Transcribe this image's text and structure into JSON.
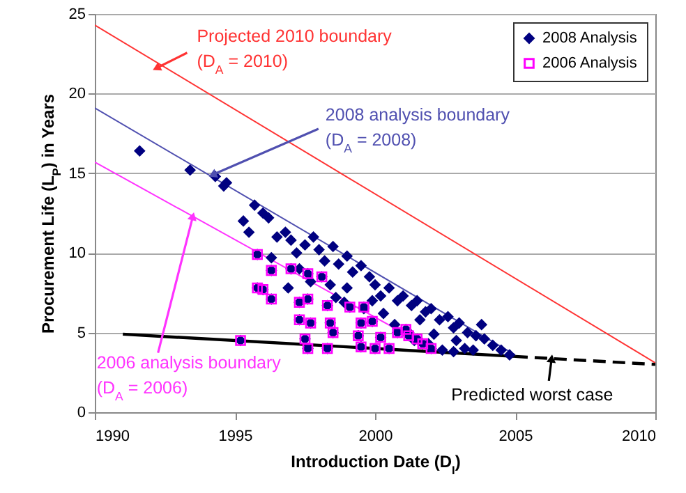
{
  "chart_data": {
    "type": "scatter",
    "xlabel": "Introduction Date (D$_{I}$)",
    "ylabel": "Procurement Life (L$_{P}$) in Years",
    "xlim": [
      1990,
      2010
    ],
    "ylim": [
      0,
      25
    ],
    "xticks": [
      1990,
      1995,
      2000,
      2005,
      2010
    ],
    "yticks": [
      0,
      5,
      10,
      15,
      20,
      25
    ],
    "grid": "y",
    "legend": "top right",
    "series": [
      {
        "type": "line",
        "color": "#ff3333",
        "x": [
          1990,
          2010
        ],
        "values": [
          24.3,
          3.1
        ]
      },
      {
        "type": "line",
        "color": "#5050b0",
        "x": [
          1990,
          2005
        ],
        "values": [
          19.1,
          3.6
        ]
      },
      {
        "type": "line",
        "color": "#ff33ff",
        "x": [
          1990,
          2001.5
        ],
        "values": [
          15.7,
          4.5
        ]
      },
      {
        "type": "line",
        "color": "#000000",
        "x": [
          1991,
          2005
        ],
        "values": [
          4.9,
          3.5
        ]
      },
      {
        "type": "line",
        "color": "#000000",
        "line_style": "dashed",
        "x": [
          2005,
          2010
        ],
        "values": [
          3.5,
          3.0
        ]
      },
      {
        "name": "2008 Analysis",
        "marker": "diamond",
        "color": "#000080",
        "x": [
          1991.6,
          1993.4,
          1994.3,
          1994.6,
          1994.7,
          1995.7,
          1995.3,
          1995.5,
          1996,
          1996.2,
          1996.5,
          1996.3,
          1996.8,
          1997,
          1997.2,
          1997.5,
          1997.8,
          1997.3,
          1998,
          1998.2,
          1998.5,
          1998.7,
          1999,
          1999.2,
          1999.5,
          1999.8,
          1997.7,
          1998.4,
          1999,
          2000,
          2000.2,
          2000.5,
          2000.8,
          2001,
          2001.3,
          2001.5,
          2001.8,
          2002,
          2002.3,
          2002.6,
          2002.8,
          2003,
          2003.3,
          2003.6,
          2003.9,
          2004.2,
          2004.5,
          2004.8,
          2003.2,
          2002.4,
          2002.8,
          2001.9,
          2002.1,
          2003.5,
          2000.3,
          2000.7,
          2001.2,
          1999.6,
          1998.9,
          2001.6,
          2003.8,
          2002.9,
          2001.4,
          1996.9,
          1998.6,
          1999.9,
          1995.2,
          1995.8,
          1996.3,
          1997,
          1997.6,
          1998.1,
          1995.8,
          1996,
          1996.3,
          1997.3,
          1997.6,
          1997.3,
          1997.7,
          1998.4,
          1998.3,
          1999.1,
          1999.6,
          1999.5,
          1999.9,
          1998.5,
          1999.4,
          1997.5,
          1997.6,
          1998.3,
          1999.5,
          2000,
          2000.5,
          2000.2,
          2000.8,
          2001.1,
          2001.5,
          2001.7,
          2001.2,
          2002
        ],
        "values": [
          16.4,
          15.2,
          14.8,
          14.2,
          14.4,
          13,
          12,
          11.3,
          12.5,
          12.2,
          11,
          9.7,
          11.3,
          10.8,
          10,
          10.5,
          11,
          9,
          10.2,
          9.5,
          10.4,
          9.3,
          9.8,
          8.8,
          9.2,
          8.5,
          8.2,
          8,
          7.8,
          8,
          7.3,
          7.8,
          7,
          7.3,
          6.7,
          7,
          6.3,
          6.5,
          5.8,
          6,
          5.3,
          5.6,
          5,
          4.8,
          4.6,
          4.2,
          3.9,
          3.6,
          4,
          3.9,
          3.8,
          4.3,
          4.9,
          3.9,
          6.2,
          5.5,
          5,
          6.5,
          6.9,
          5.8,
          5.5,
          4.5,
          4.5,
          7.8,
          7.2,
          7,
          4.5,
          9.9,
          8.9,
          9,
          8.7,
          8.5,
          7.8,
          7.7,
          7.1,
          6.9,
          7.1,
          5.8,
          5.6,
          5.6,
          6.7,
          6.6,
          6.6,
          5.6,
          5.7,
          5,
          4.8,
          4.6,
          4,
          4,
          4.1,
          4,
          4,
          4.7,
          5,
          5.2,
          4.6,
          4.3,
          4.8,
          4
        ]
      },
      {
        "name": "2006 Analysis",
        "marker": "square",
        "color": "#ff00ff",
        "x": [
          1995.2,
          1995.8,
          1996.3,
          1997,
          1997.6,
          1998.1,
          1995.8,
          1996,
          1996.3,
          1997.3,
          1997.6,
          1997.3,
          1997.7,
          1998.4,
          1998.3,
          1999.1,
          1999.6,
          1999.5,
          1999.9,
          1998.5,
          1999.4,
          1997.5,
          1997.6,
          1998.3,
          1999.5,
          2000,
          2000.5,
          2000.2,
          2000.8,
          2001.1,
          2001.5,
          2001.7,
          2001.2,
          2002
        ],
        "values": [
          4.5,
          9.9,
          8.9,
          9,
          8.7,
          8.5,
          7.8,
          7.7,
          7.1,
          6.9,
          7.1,
          5.8,
          5.6,
          5.6,
          6.7,
          6.6,
          6.6,
          5.6,
          5.7,
          5,
          4.8,
          4.6,
          4,
          4,
          4.1,
          4,
          4,
          4.7,
          5,
          5.2,
          4.6,
          4.3,
          4.8,
          4
        ]
      }
    ],
    "annotations": [
      {
        "text": "Projected 2010 boundary\n(D$_{A}$ = 2010)",
        "x": 1992.2,
        "y": 21.6
      },
      {
        "text": "2008 analysis boundary\n(D$_{A}$ = 2008)",
        "x": 1994.2,
        "y": 14.9
      },
      {
        "text": "2006 analysis boundary\n(D$_{A}$ = 2006)",
        "x": 1993.5,
        "y": 12.3
      },
      {
        "text": "Predicted worst case",
        "x": 2006.3,
        "y": 3.37
      }
    ]
  }
}
